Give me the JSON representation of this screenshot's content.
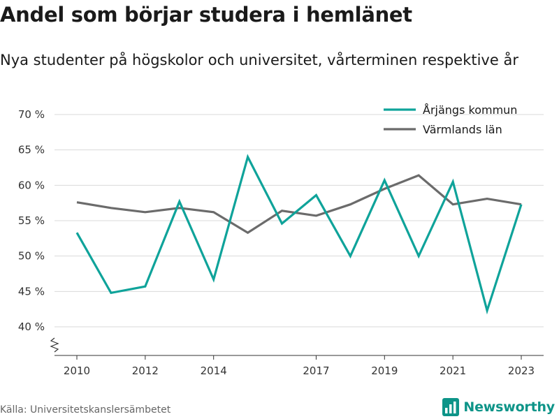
{
  "header": {
    "title": "Andel som börjar studera i hemlänet",
    "subtitle": "Nya studenter på högskolor och universitet, vårterminen respektive år"
  },
  "footer": {
    "source": "Källa: Universitetskanslersämbetet",
    "brand": "Newsworthy",
    "brand_icon": "bar-chart-icon"
  },
  "colors": {
    "teal": "#0fa39a",
    "gray": "#6b6b6b",
    "grid": "#d9d9d9",
    "brand": "#0d9488"
  },
  "chart_data": {
    "type": "line",
    "x": [
      2010,
      2011,
      2012,
      2013,
      2014,
      2015,
      2016,
      2017,
      2018,
      2019,
      2020,
      2021,
      2022,
      2023
    ],
    "x_ticks": [
      2010,
      2012,
      2014,
      2017,
      2019,
      2021,
      2023
    ],
    "x_tick_labels": [
      "2010",
      "2012",
      "2014",
      "2017",
      "2019",
      "2021",
      "2023"
    ],
    "y_ticks": [
      40,
      45,
      50,
      55,
      60,
      65,
      70
    ],
    "y_tick_labels": [
      "40 %",
      "45 %",
      "50 %",
      "55 %",
      "60 %",
      "65 %",
      "70 %"
    ],
    "ylim": [
      40,
      70
    ],
    "y_axis_break": true,
    "grid": "horizontal",
    "legend_position": "top-right",
    "series": [
      {
        "name": "Årjängs kommun",
        "color": "#0fa39a",
        "values": [
          53.3,
          44.8,
          45.7,
          57.7,
          46.7,
          64.0,
          54.6,
          58.6,
          50.0,
          60.7,
          50.0,
          60.5,
          42.3,
          57.3
        ]
      },
      {
        "name": "Värmlands län",
        "color": "#6b6b6b",
        "values": [
          57.6,
          56.8,
          56.2,
          56.8,
          56.2,
          53.3,
          56.4,
          55.7,
          57.3,
          59.5,
          61.4,
          57.3,
          58.1,
          57.3
        ]
      }
    ]
  }
}
